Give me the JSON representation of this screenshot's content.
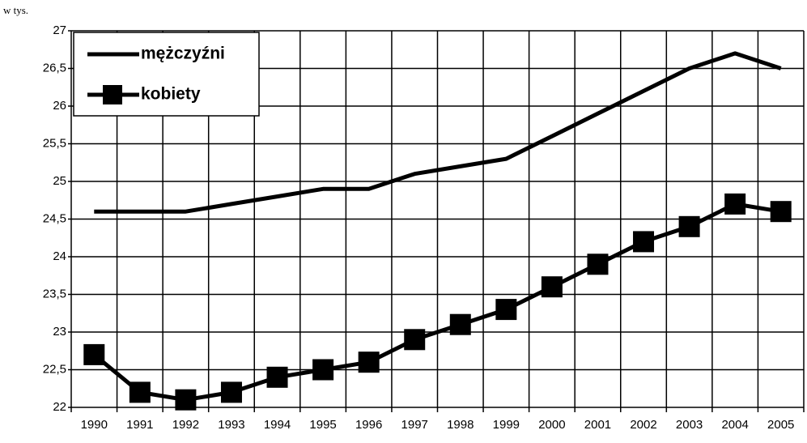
{
  "chart_data": {
    "type": "line",
    "y_label": "w tys.",
    "categories": [
      "1990",
      "1991",
      "1992",
      "1993",
      "1994",
      "1995",
      "1996",
      "1997",
      "1998",
      "1999",
      "2000",
      "2001",
      "2002",
      "2003",
      "2004",
      "2005"
    ],
    "series": [
      {
        "name": "mężczyźni",
        "color": "#000000",
        "marker": null,
        "values": [
          24.6,
          24.6,
          24.6,
          24.7,
          24.8,
          24.9,
          24.9,
          25.1,
          25.2,
          25.3,
          25.6,
          25.9,
          26.2,
          26.5,
          26.7,
          26.5
        ]
      },
      {
        "name": "kobiety",
        "color": "#000000",
        "marker": "square",
        "values": [
          22.7,
          22.2,
          22.1,
          22.2,
          22.4,
          22.5,
          22.6,
          22.9,
          23.1,
          23.3,
          23.6,
          23.9,
          24.2,
          24.4,
          24.7,
          24.6
        ]
      }
    ],
    "ylim": [
      22,
      27
    ],
    "yticks": [
      22,
      {
        "value": 22.5,
        "label": "22,5"
      },
      23,
      {
        "value": 23.5,
        "label": "23,5"
      },
      24,
      {
        "value": 24.5,
        "label": "24,5"
      },
      25,
      {
        "value": 25.5,
        "label": "25,5"
      },
      26,
      {
        "value": 26.5,
        "label": "26,5"
      },
      27
    ],
    "grid": true,
    "legend": "top-left"
  }
}
